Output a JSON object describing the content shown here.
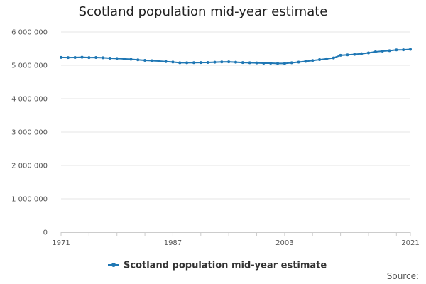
{
  "chart_data": {
    "type": "line",
    "title": "Scotland population mid-year estimate",
    "x_tick_labels": [
      "1971",
      "1987",
      "2003",
      "2021"
    ],
    "y_tick_labels": [
      "0",
      "1 000 000",
      "2 000 000",
      "3 000 000",
      "4 000 000",
      "5 000 000",
      "6 000 000"
    ],
    "ylim": [
      0,
      6000000
    ],
    "xlim": [
      1971,
      2021
    ],
    "grid": true,
    "legend_position": "bottom",
    "series": [
      {
        "name": "Scotland population mid-year estimate",
        "color": "#1f77b4",
        "x": [
          1971,
          1972,
          1973,
          1974,
          1975,
          1976,
          1977,
          1978,
          1979,
          1980,
          1981,
          1982,
          1983,
          1984,
          1985,
          1986,
          1987,
          1988,
          1989,
          1990,
          1991,
          1992,
          1993,
          1994,
          1995,
          1996,
          1997,
          1998,
          1999,
          2000,
          2001,
          2002,
          2003,
          2004,
          2005,
          2006,
          2007,
          2008,
          2009,
          2010,
          2011,
          2012,
          2013,
          2014,
          2015,
          2016,
          2017,
          2018,
          2019,
          2020,
          2021
        ],
        "values": [
          5236000,
          5231000,
          5234000,
          5241000,
          5232000,
          5233000,
          5226000,
          5212000,
          5204000,
          5194000,
          5180000,
          5165000,
          5148000,
          5139000,
          5128000,
          5112000,
          5099000,
          5077000,
          5078000,
          5081000,
          5083000,
          5086000,
          5092000,
          5102000,
          5104000,
          5092000,
          5083000,
          5077000,
          5072000,
          5063000,
          5064000,
          5055000,
          5057000,
          5078000,
          5095000,
          5117000,
          5144000,
          5169000,
          5194000,
          5222000,
          5299800,
          5313600,
          5327700,
          5347600,
          5373000,
          5404700,
          5424800,
          5438100,
          5463300,
          5466000,
          5479900
        ]
      }
    ]
  },
  "source_label": "Source:"
}
